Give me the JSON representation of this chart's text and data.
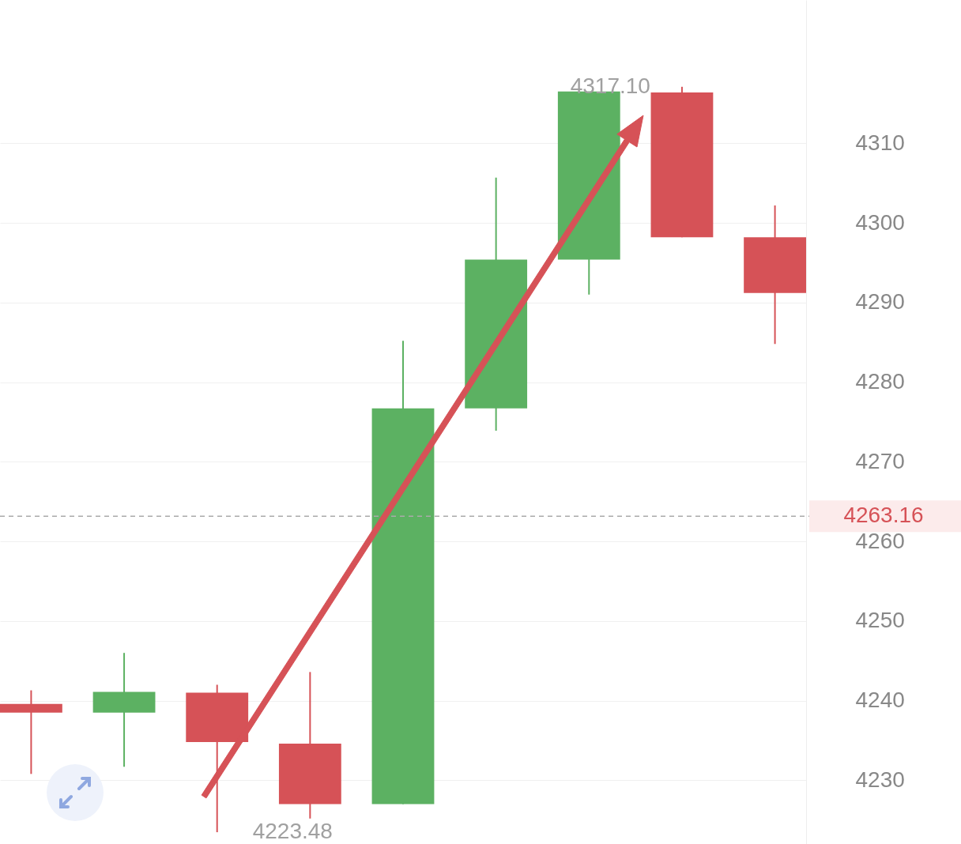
{
  "chart_data": {
    "type": "candlestick",
    "categories": [
      null,
      null,
      null,
      null,
      null,
      null,
      null,
      null,
      null
    ],
    "ohlc": [
      [
        4239.6,
        4241.3,
        4230.8,
        4238.5
      ],
      [
        4238.5,
        4246.0,
        4231.7,
        4241.1
      ],
      [
        4241.0,
        4242.0,
        4223.48,
        4234.8
      ],
      [
        4234.6,
        4243.6,
        4225.2,
        4227.0
      ],
      [
        4227.0,
        4285.2,
        4227.0,
        4276.7
      ],
      [
        4276.7,
        4305.7,
        4273.9,
        4295.4
      ],
      [
        4295.4,
        4316.5,
        4291.0,
        4316.5
      ],
      [
        4316.4,
        4317.1,
        4298.2,
        4298.2
      ],
      [
        4298.2,
        4302.2,
        4284.8,
        4291.2
      ]
    ],
    "colors": [
      "#d65257",
      "#5cb162",
      "#d65257",
      "#d65257",
      "#5cb162",
      "#5cb162",
      "#5cb162",
      "#d65257",
      "#d65257"
    ],
    "ylim": [
      4222,
      4328
    ],
    "yticks": [
      4230,
      4240,
      4250,
      4260,
      4270,
      4280,
      4290,
      4300,
      4310
    ],
    "grid": "y",
    "tick_labels": "y",
    "ref_lines": [
      {
        "axis": "y",
        "value": 4263.16,
        "label": "4263.16",
        "color": "#aaaaaa",
        "line_style": "dashed"
      }
    ],
    "annotations": [
      "4317.10",
      "4223.48"
    ]
  }
}
